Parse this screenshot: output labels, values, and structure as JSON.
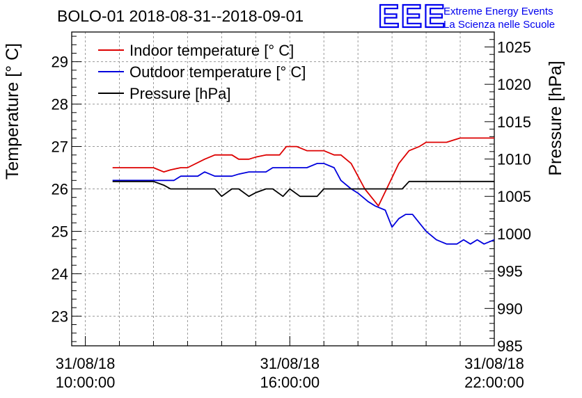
{
  "title": "BOLO-01 2018-08-31--2018-09-01",
  "logo": {
    "mark": "EEE",
    "line1": "Extreme Energy Events",
    "line2": "La Scienza nelle Scuole",
    "color": "#0000ee"
  },
  "chart_data": {
    "type": "line",
    "grid": true,
    "legend_position": "top-left",
    "ylabel_left": "Temperature [° C]",
    "ylabel_right": "Pressure [hPa]",
    "xlim_hours": [
      9.6,
      22.0
    ],
    "ylim_left": [
      22.3,
      29.7
    ],
    "ylim_right": [
      985,
      1027
    ],
    "x_ticks": [
      {
        "hour": 10,
        "line1": "31/08/18",
        "line2": "10:00:00"
      },
      {
        "hour": 16,
        "line1": "31/08/18",
        "line2": "16:00:00"
      },
      {
        "hour": 22,
        "line1": "31/08/18",
        "line2": "22:00:00"
      }
    ],
    "y_ticks_left": [
      23,
      24,
      25,
      26,
      27,
      28,
      29
    ],
    "y_ticks_right": [
      985,
      990,
      995,
      1000,
      1005,
      1010,
      1015,
      1020,
      1025
    ],
    "series": [
      {
        "name": "Indoor temperature [° C]",
        "axis": "left",
        "color": "#dd0000",
        "x": [
          10.8,
          11.0,
          11.5,
          12.0,
          12.3,
          12.5,
          12.8,
          13.0,
          13.5,
          13.8,
          14.0,
          14.3,
          14.5,
          14.8,
          15.0,
          15.3,
          15.5,
          15.7,
          15.9,
          16.2,
          16.5,
          16.8,
          17.0,
          17.3,
          17.5,
          17.8,
          18.0,
          18.2,
          18.4,
          18.6,
          18.9,
          19.2,
          19.5,
          19.8,
          20.0,
          20.3,
          20.6,
          20.8,
          21.0,
          21.3,
          21.5,
          21.8,
          22.0
        ],
        "y": [
          26.5,
          26.5,
          26.5,
          26.5,
          26.4,
          26.45,
          26.5,
          26.5,
          26.7,
          26.8,
          26.8,
          26.8,
          26.7,
          26.7,
          26.75,
          26.8,
          26.8,
          26.8,
          27.0,
          27.0,
          26.9,
          26.9,
          26.9,
          26.8,
          26.8,
          26.6,
          26.3,
          26.0,
          25.8,
          25.6,
          26.1,
          26.6,
          26.9,
          27.0,
          27.1,
          27.1,
          27.1,
          27.15,
          27.2,
          27.2,
          27.2,
          27.2,
          27.2
        ]
      },
      {
        "name": "Outdoor temperature [° C]",
        "axis": "left",
        "color": "#0000dd",
        "x": [
          10.8,
          11.0,
          11.5,
          12.0,
          12.3,
          12.6,
          12.8,
          13.0,
          13.3,
          13.5,
          13.8,
          14.0,
          14.3,
          14.5,
          14.8,
          15.0,
          15.3,
          15.5,
          15.8,
          16.0,
          16.3,
          16.5,
          16.8,
          17.0,
          17.3,
          17.5,
          17.8,
          18.0,
          18.3,
          18.5,
          18.8,
          19.0,
          19.2,
          19.4,
          19.6,
          19.8,
          20.0,
          20.3,
          20.6,
          20.9,
          21.1,
          21.3,
          21.5,
          21.7,
          22.0
        ],
        "y": [
          26.2,
          26.2,
          26.2,
          26.2,
          26.2,
          26.2,
          26.3,
          26.3,
          26.3,
          26.4,
          26.3,
          26.3,
          26.3,
          26.35,
          26.4,
          26.4,
          26.4,
          26.5,
          26.5,
          26.5,
          26.5,
          26.5,
          26.6,
          26.6,
          26.5,
          26.2,
          26.0,
          25.9,
          25.7,
          25.6,
          25.5,
          25.1,
          25.3,
          25.4,
          25.4,
          25.2,
          25.0,
          24.8,
          24.7,
          24.7,
          24.8,
          24.7,
          24.8,
          24.7,
          24.8
        ]
      },
      {
        "name": "Pressure [hPa]",
        "axis": "right",
        "color": "#000000",
        "x": [
          10.8,
          11.0,
          11.5,
          12.0,
          12.3,
          12.5,
          13.0,
          13.5,
          13.8,
          14.0,
          14.3,
          14.5,
          14.8,
          15.0,
          15.3,
          15.5,
          15.8,
          16.0,
          16.3,
          16.5,
          16.8,
          17.0,
          17.5,
          18.0,
          18.5,
          19.0,
          19.3,
          19.5,
          20.0,
          20.5,
          21.0,
          21.5,
          22.0
        ],
        "y": [
          1007,
          1007,
          1007,
          1007,
          1006.5,
          1006,
          1006,
          1006,
          1006,
          1005,
          1006,
          1006,
          1005,
          1005.5,
          1006,
          1006,
          1005,
          1006,
          1005,
          1005,
          1005,
          1006,
          1006,
          1006,
          1006,
          1006,
          1006,
          1007,
          1007,
          1007,
          1007,
          1007,
          1007
        ]
      }
    ]
  }
}
